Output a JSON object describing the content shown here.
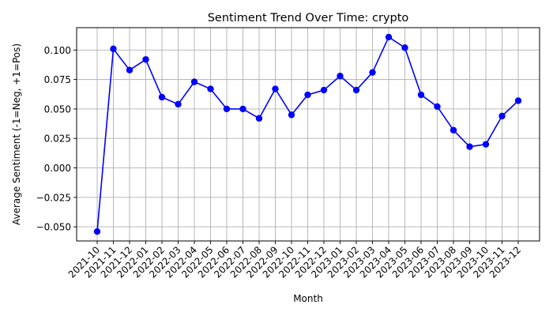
{
  "chart_data": {
    "type": "line",
    "title": "Sentiment Trend Over Time: crypto",
    "xlabel": "Month",
    "ylabel": "Average Sentiment (-1=Neg, +1=Pos)",
    "categories": [
      "2021-10",
      "2021-11",
      "2021-12",
      "2022-01",
      "2022-02",
      "2022-03",
      "2022-04",
      "2022-05",
      "2022-06",
      "2022-07",
      "2022-08",
      "2022-09",
      "2022-10",
      "2022-11",
      "2022-12",
      "2023-01",
      "2023-02",
      "2023-03",
      "2023-04",
      "2023-05",
      "2023-06",
      "2023-07",
      "2023-08",
      "2023-09",
      "2023-10",
      "2023-11",
      "2023-12"
    ],
    "series": [
      {
        "values": [
          -0.054,
          0.101,
          0.083,
          0.092,
          0.06,
          0.054,
          0.073,
          0.067,
          0.05,
          0.05,
          0.042,
          0.067,
          0.045,
          0.062,
          0.066,
          0.078,
          0.066,
          0.081,
          0.111,
          0.102,
          0.062,
          0.052,
          0.032,
          0.018,
          0.02,
          0.044,
          0.057
        ],
        "color": "#0000ff"
      }
    ],
    "ylim": [
      -0.062,
      0.119
    ],
    "yticks": [
      -0.05,
      -0.025,
      0.0,
      0.025,
      0.05,
      0.075,
      0.1
    ],
    "ytick_labels": [
      "−0.050",
      "−0.025",
      "0.000",
      "0.025",
      "0.050",
      "0.075",
      "0.100"
    ],
    "grid": true,
    "marker": "circle",
    "legend": "none"
  }
}
